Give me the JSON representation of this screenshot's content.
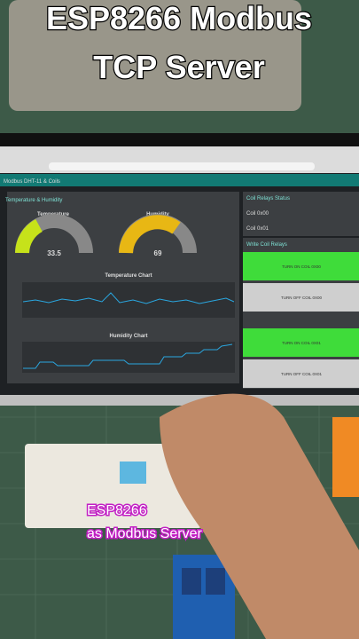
{
  "overlay": {
    "title_lines": [
      "ESP8266 Modbus",
      "TCP Server"
    ],
    "caption_lines": [
      "ESP8266",
      "as Modbus Server"
    ]
  },
  "dashboard": {
    "header": "Modbus DHT-11 & Coils",
    "left_panel": {
      "title": "Temperature & Humidity",
      "gauges": [
        {
          "label": "Temperature",
          "value": "33.5"
        },
        {
          "label": "Humidity",
          "value": "69"
        }
      ],
      "charts": [
        {
          "title": "Temperature Chart"
        },
        {
          "title": "Humidity Chart"
        }
      ]
    },
    "coil_status": {
      "title": "Coil Relays Status",
      "coils": [
        "Coil 0x00",
        "Coil 0x01"
      ]
    },
    "write_coils": {
      "title": "Write Coil Relays",
      "buttons": [
        "TURN ON COIL 0X00",
        "TURN OFF COIL 0X00",
        "TURN ON COIL 0X01",
        "TURN OFF COIL 0X01"
      ]
    }
  }
}
